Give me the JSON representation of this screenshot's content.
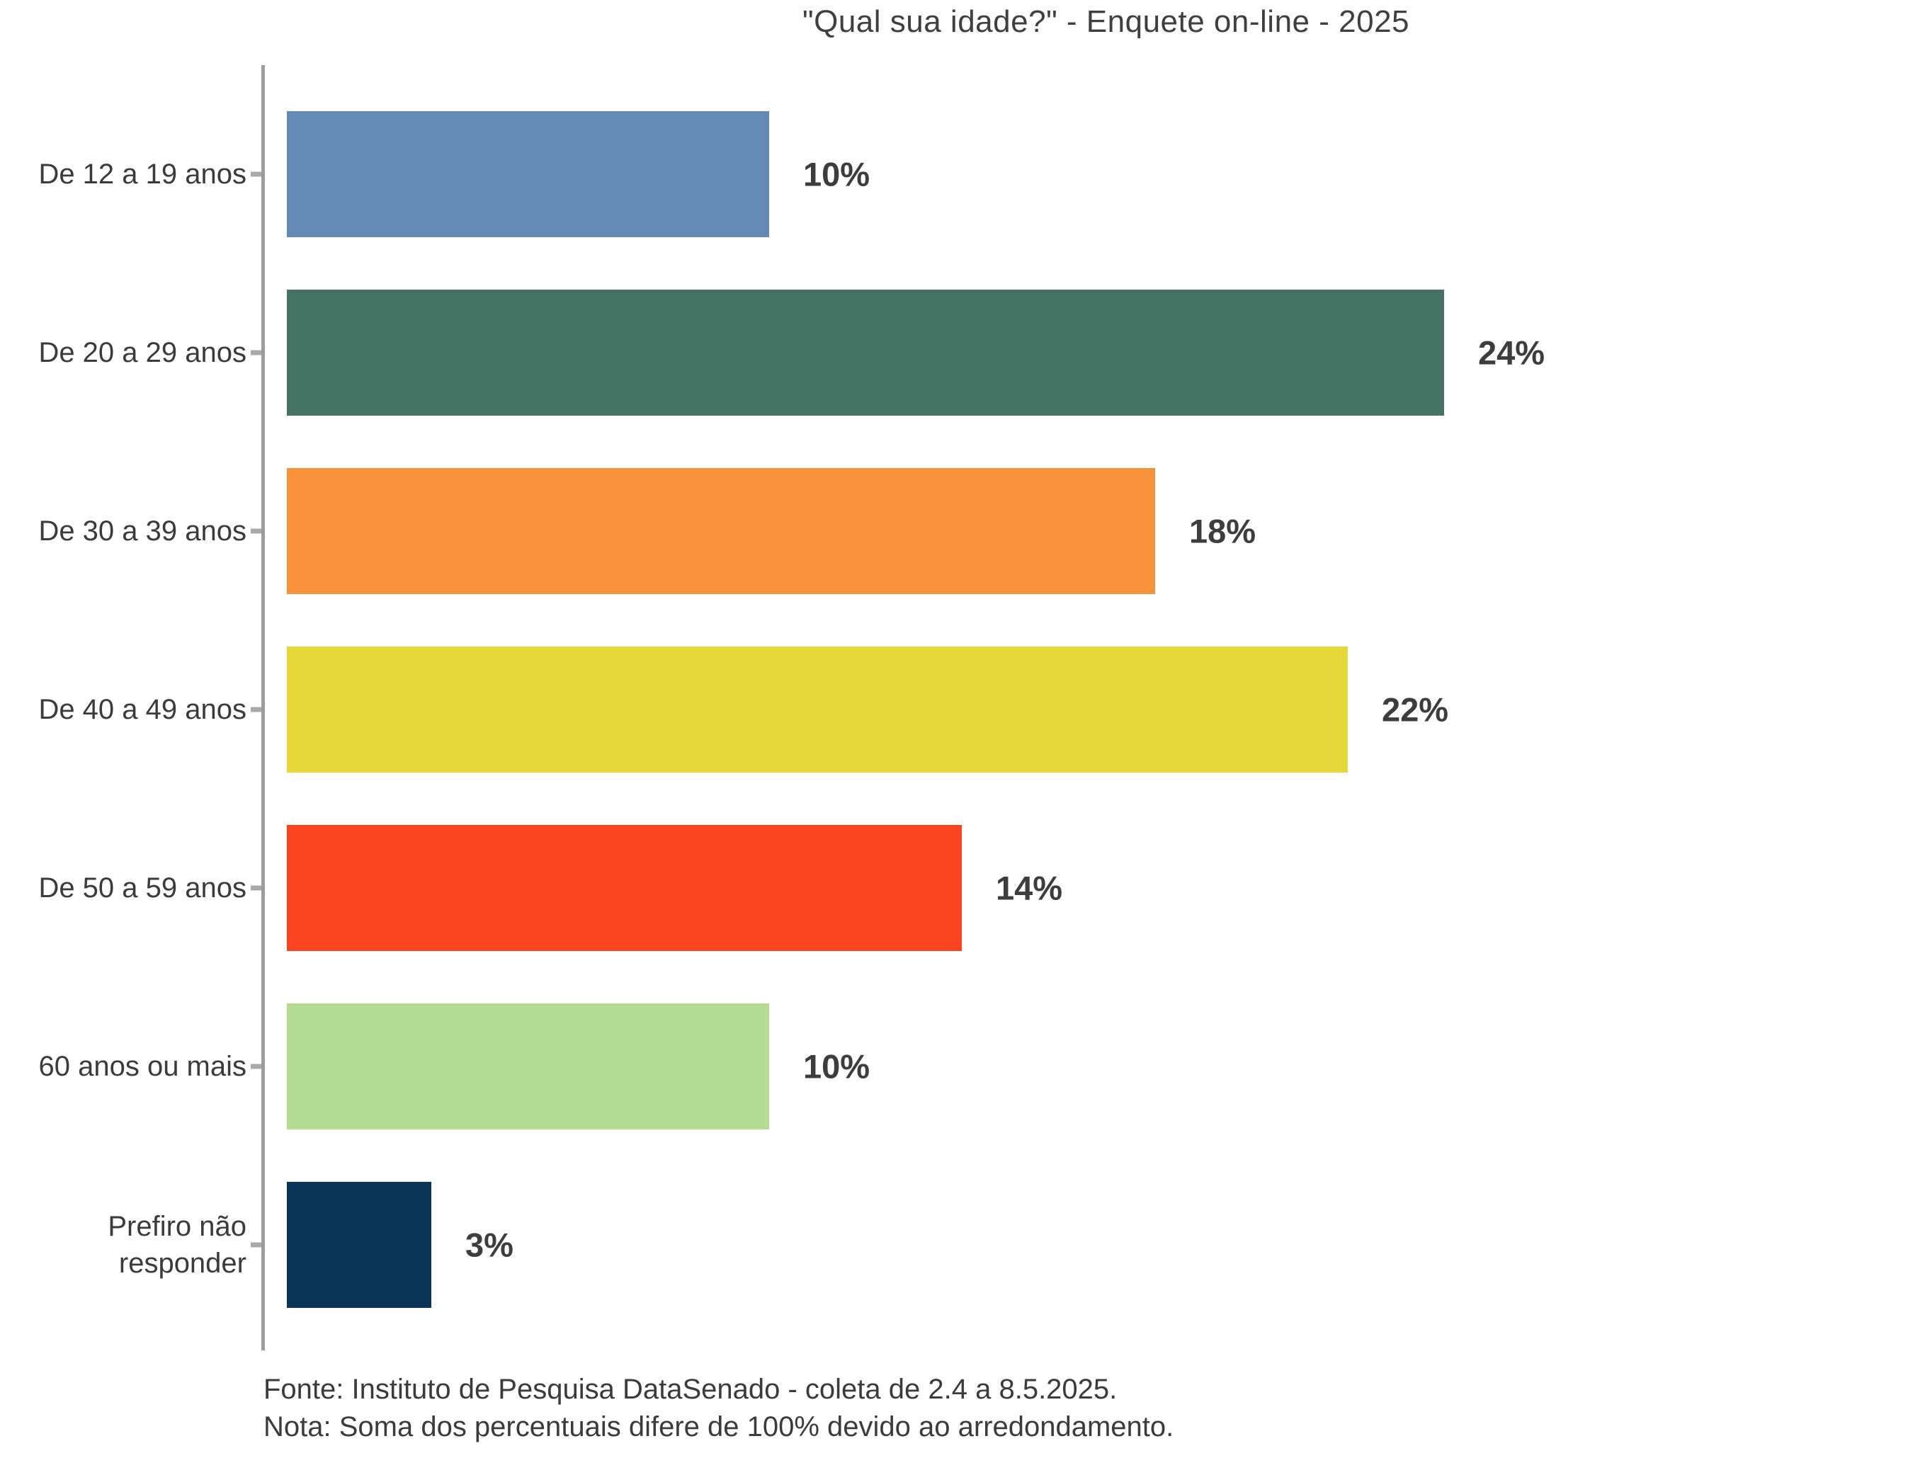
{
  "title": "\"Qual sua idade?\" - Enquete on-line - 2025",
  "footer": {
    "source": "Fonte: Instituto de Pesquisa DataSenado - coleta de 2.4 a 8.5.2025.",
    "note": "Nota: Soma dos percentuais difere de 100% devido ao arredondamento."
  },
  "chart_data": {
    "type": "bar",
    "orientation": "horizontal",
    "title": "\"Qual sua idade?\" - Enquete on-line - 2025",
    "categories": [
      "De 12 a 19 anos",
      "De 20 a 29 anos",
      "De 30 a 39 anos",
      "De 40 a 49 anos",
      "De 50 a 59 anos",
      "60 anos ou mais",
      "Prefiro não responder"
    ],
    "values": [
      10,
      24,
      18,
      22,
      14,
      10,
      3
    ],
    "value_labels": [
      "10%",
      "24%",
      "18%",
      "22%",
      "14%",
      "10%",
      "3%"
    ],
    "bar_colors": [
      "#6489b2",
      "#467363",
      "#f9923e",
      "#e4d839",
      "#fb4522",
      "#b6db92",
      "#0a3355"
    ],
    "xlabel": "",
    "ylabel": "",
    "xlim": [
      0,
      26
    ],
    "grid": false,
    "legend": false,
    "axis_color": "#9d9d9d",
    "text_color": "#3b3b3b",
    "source_note": "Fonte: Instituto de Pesquisa DataSenado - coleta de 2.4 a 8.5.2025.",
    "rounding_note": "Nota: Soma dos percentuais difere de 100% devido ao arredondamento."
  }
}
